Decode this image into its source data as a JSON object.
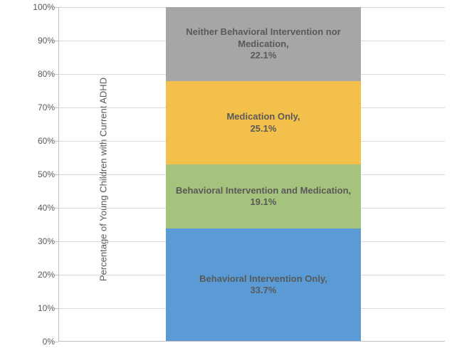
{
  "chart": {
    "type": "stacked-bar",
    "y_axis_title": "Percentage of Young Children with Current ADHD",
    "ylim": [
      0,
      100
    ],
    "ytick_step": 10,
    "ytick_suffix": "%",
    "background_color": "#ffffff",
    "grid_color": "#d9d9d9",
    "axis_color": "#bfbfbf",
    "label_color": "#595959",
    "label_fontsize": 13,
    "tick_fontsize": 12,
    "bar_label_fontsize": 13,
    "segments": [
      {
        "key": "behavioral-only",
        "label": "Behavioral Intervention Only,",
        "value_label": "33.7%",
        "value": 33.7,
        "color": "#5b9bd5"
      },
      {
        "key": "both",
        "label": "Behavioral Intervention and Medication,",
        "value_label": "19.1%",
        "value": 19.1,
        "color": "#a6c37d"
      },
      {
        "key": "medication-only",
        "label": "Medication Only,",
        "value_label": "25.1%",
        "value": 25.1,
        "color": "#f3c14b"
      },
      {
        "key": "neither",
        "label": "Neither Behavioral Intervention nor Medication,",
        "value_label": "22.1%",
        "value": 22.1,
        "color": "#a6a6a6"
      }
    ]
  }
}
